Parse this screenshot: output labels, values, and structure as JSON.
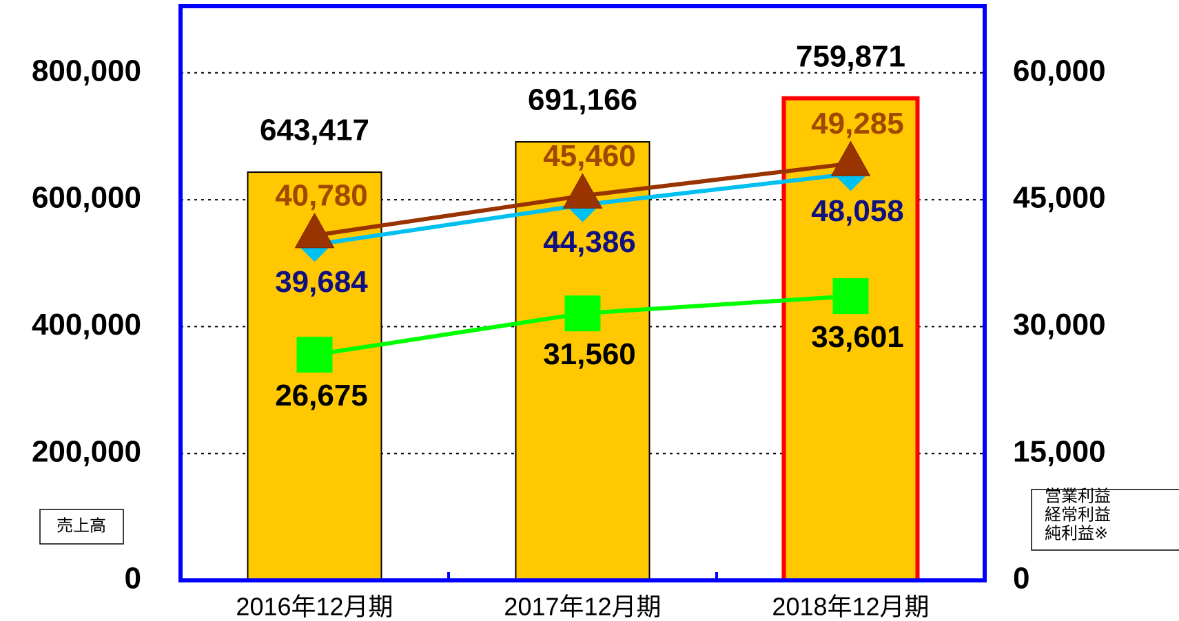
{
  "chart_data": {
    "type": "bar",
    "categories": [
      "2016年12月期",
      "2017年12月期",
      "2018年12月期"
    ],
    "bar_series": {
      "name": "売上高",
      "color": "#ffc800",
      "edgecolors": [
        "#000000",
        "#000000",
        "#ff0000"
      ],
      "values": [
        643417,
        691166,
        759871
      ],
      "value_labels": [
        "643,417",
        "691,166",
        "759,871"
      ]
    },
    "series": [
      {
        "name": "営業利益",
        "color": "#00c0f0",
        "marker": "diamond",
        "axis": "y2",
        "label_side": "below",
        "label_color": "#101080",
        "values": [
          39684,
          44386,
          48058
        ],
        "value_labels": [
          "39,684",
          "44,386",
          "48,058"
        ]
      },
      {
        "name": "経常利益",
        "color": "#993300",
        "marker": "triangle",
        "axis": "y2",
        "label_side": "above",
        "label_color": "#a04800",
        "values": [
          40780,
          45460,
          49285
        ],
        "value_labels": [
          "40,780",
          "45,460",
          "49,285"
        ]
      },
      {
        "name": "純利益※",
        "color": "#00ff00",
        "marker": "square",
        "axis": "y2",
        "label_side": "below",
        "label_color": "#000000",
        "values": [
          26675,
          31560,
          33601
        ],
        "value_labels": [
          "26,675",
          "31,560",
          "33,601"
        ]
      }
    ],
    "ylim": [
      0,
      905000
    ],
    "yticks": [
      0,
      {
        "value": 200000,
        "label": "200,000"
      },
      {
        "value": 400000,
        "label": "400,000"
      },
      {
        "value": 600000,
        "label": "600,000"
      },
      {
        "value": 800000,
        "label": "800,000"
      }
    ],
    "y2lim": [
      0,
      67875
    ],
    "y2ticks": [
      0,
      {
        "value": 15000,
        "label": "15,000"
      },
      {
        "value": 30000,
        "label": "30,000"
      },
      {
        "value": 45000,
        "label": "45,000"
      },
      {
        "value": 60000,
        "label": "60,000"
      }
    ],
    "grid": true
  }
}
